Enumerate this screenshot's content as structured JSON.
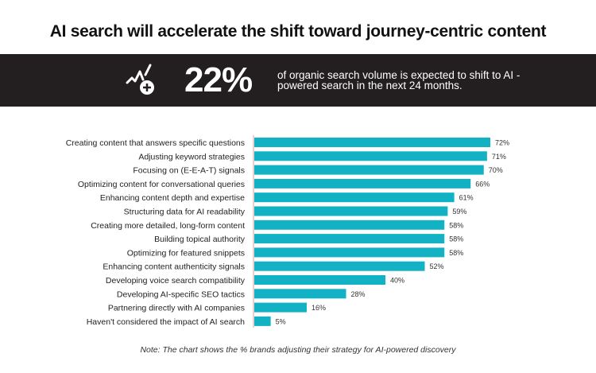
{
  "title": "AI search will accelerate the shift toward journey-centric content",
  "banner": {
    "icon": "trend-chart-plus-icon",
    "stat_value": "22%",
    "stat_text": "of organic search volume is expected to shift to AI - powered search in the next 24 months."
  },
  "note": "Note: The chart shows the % brands adjusting their strategy for AI-powered discovery",
  "colors": {
    "bar": "#12b2c4",
    "band": "#231f20",
    "axis": "#d9a3a3"
  },
  "chart_data": {
    "type": "bar",
    "orientation": "horizontal",
    "categories": [
      "Creating content that answers specific questions",
      "Adjusting keyword strategies",
      "Focusing on (E-E-A-T) signals",
      "Optimizing content for conversational queries",
      "Enhancing content depth and expertise",
      "Structuring data for AI readability",
      "Creating more detailed, long-form content",
      "Building topical authority",
      "Optimizing for featured snippets",
      "Enhancing content authenticity signals",
      "Developing voice search compatibility",
      "Developing AI-specific SEO tactics",
      "Partnering directly with AI companies",
      "Haven't considered the impact of AI search"
    ],
    "values": [
      72,
      71,
      70,
      66,
      61,
      59,
      58,
      58,
      58,
      52,
      40,
      28,
      16,
      5
    ],
    "labels": [
      "72%",
      "71%",
      "70%",
      "66%",
      "61%",
      "59%",
      "58%",
      "58%",
      "58%",
      "52%",
      "40%",
      "28%",
      "16%",
      "5%"
    ],
    "xlim": [
      0,
      100
    ],
    "grid": false
  }
}
